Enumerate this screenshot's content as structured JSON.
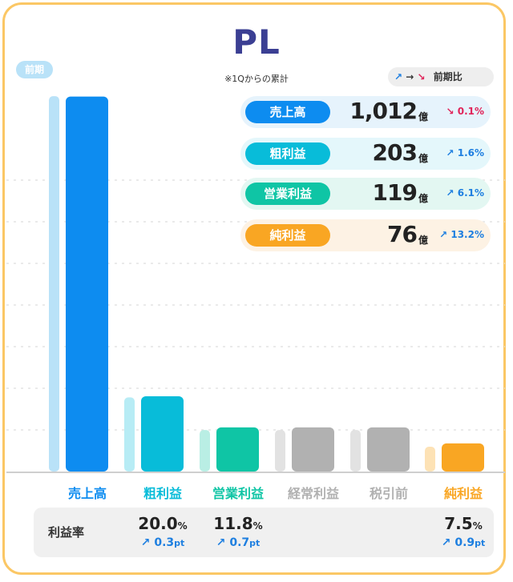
{
  "title": "PL",
  "subtitle": "※1Qからの累計",
  "prev_label": "前期",
  "legend": {
    "up": "↗",
    "arrow": "→",
    "down": "↘",
    "label": "前期比"
  },
  "unit": "億",
  "colors": {
    "sales": "#0D8CF0",
    "sales_prev": "#B9E2F8",
    "gross": "#08BCD9",
    "gross_prev": "#B7ECF5",
    "operating": "#0FC5A5",
    "operating_prev": "#B9EEE4",
    "ordinary": "#B1B1B1",
    "ordinary_prev": "#E2E2E2",
    "pretax": "#B1B1B1",
    "pretax_prev": "#E2E2E2",
    "net": "#F9A623",
    "net_prev": "#FDE2B5",
    "up": "#1E7FE0",
    "down": "#E0245A"
  },
  "kpis": [
    {
      "label": "売上高",
      "value": "1,012",
      "unit": "億",
      "change": "0.1%",
      "direction": "down"
    },
    {
      "label": "粗利益",
      "value": "203",
      "unit": "億",
      "change": "1.6%",
      "direction": "up"
    },
    {
      "label": "営業利益",
      "value": "119",
      "unit": "億",
      "change": "6.1%",
      "direction": "up"
    },
    {
      "label": "純利益",
      "value": "76",
      "unit": "億",
      "change": "13.2%",
      "direction": "up"
    }
  ],
  "margin_title": "利益率",
  "margins": [
    {
      "value": "20.0",
      "unit": "%",
      "change": "0.3",
      "change_unit": "pt"
    },
    {
      "value": "11.8",
      "unit": "%",
      "change": "0.7",
      "change_unit": "pt"
    },
    {
      "value": "7.5",
      "unit": "%",
      "change": "0.9",
      "change_unit": "pt"
    }
  ],
  "chart_data": {
    "type": "bar",
    "title": "PL",
    "subtitle": "※1Qからの累計",
    "categories": [
      "売上高",
      "粗利益",
      "営業利益",
      "経常利益",
      "税引前",
      "純利益"
    ],
    "series": [
      {
        "name": "前期",
        "values": [
          1013,
          200,
          112,
          112,
          112,
          67
        ]
      },
      {
        "values": [
          1012,
          203,
          119,
          119,
          119,
          76
        ]
      }
    ],
    "ylim": [
      0,
      1050
    ],
    "grid": true,
    "xlabel": "",
    "ylabel": ""
  }
}
